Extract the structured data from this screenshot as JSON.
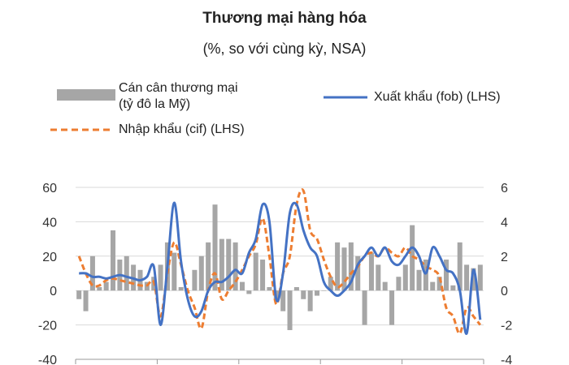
{
  "chart_data": {
    "type": "bar+line",
    "title": "Thương mại hàng hóa",
    "subtitle": "(%, so với cùng kỳ, NSA)",
    "legend": [
      {
        "key": "balance",
        "label_line1": "Cán cân thương mại",
        "label_line2": "(tỷ đô la Mỹ)",
        "style": "bar",
        "color": "#a6a6a6"
      },
      {
        "key": "exports",
        "label": "Xuất khẩu (fob) (LHS)",
        "style": "solid-line",
        "color": "#4472c4"
      },
      {
        "key": "imports",
        "label": "Nhập khẩu (cif) (LHS)",
        "style": "dashed-line",
        "color": "#ed7d31"
      }
    ],
    "left_axis": {
      "ticks": [
        "60",
        "40",
        "20",
        "0",
        "-20",
        "-40"
      ],
      "min": -40,
      "max": 60
    },
    "right_axis": {
      "ticks": [
        "6",
        "4",
        "2",
        "0",
        "-2",
        "-4"
      ],
      "min": -4,
      "max": 6
    },
    "x_categories_count": 60,
    "series": [
      {
        "key": "balance",
        "axis": "right",
        "values": [
          -0.5,
          -1.2,
          2.0,
          0.2,
          0.5,
          3.5,
          1.8,
          2.0,
          1.5,
          1.2,
          0.5,
          0.8,
          1.5,
          2.8,
          2.2,
          0.2,
          0.0,
          1.2,
          2.0,
          2.8,
          5.0,
          3.0,
          3.0,
          2.8,
          0.5,
          -0.2,
          2.2,
          1.8,
          0.2,
          -0.5,
          -1.2,
          -2.3,
          0.2,
          -0.5,
          -1.2,
          -0.3,
          0.0,
          0.8,
          2.8,
          2.5,
          2.8,
          2.0,
          -2.0,
          2.2,
          1.5,
          0.5,
          -2.0,
          0.8,
          1.5,
          3.8,
          1.2,
          1.8,
          0.5,
          0.8,
          1.8,
          0.3,
          2.8,
          1.5,
          1.3,
          1.5
        ]
      },
      {
        "key": "exports",
        "axis": "left",
        "values": [
          10,
          10,
          8,
          8,
          7,
          8,
          9,
          8,
          7,
          6,
          8,
          14,
          -20,
          14,
          51,
          17,
          -5,
          -15,
          -12,
          0,
          5,
          5,
          8,
          12,
          10,
          22,
          30,
          50,
          40,
          -5,
          10,
          45,
          50,
          35,
          25,
          20,
          5,
          0,
          -3,
          0,
          5,
          15,
          20,
          25,
          20,
          25,
          17,
          15,
          20,
          25,
          20,
          10,
          25,
          20,
          12,
          10,
          0,
          -25,
          12,
          -17
        ]
      },
      {
        "key": "imports",
        "axis": "left",
        "values": [
          20,
          10,
          3,
          3,
          6,
          7,
          6,
          5,
          4,
          3,
          3,
          5,
          -15,
          10,
          28,
          15,
          0,
          -10,
          -22,
          0,
          10,
          -5,
          0,
          5,
          12,
          20,
          27,
          42,
          20,
          -8,
          10,
          20,
          50,
          58,
          35,
          30,
          18,
          8,
          2,
          5,
          10,
          14,
          20,
          22,
          20,
          25,
          22,
          20,
          25,
          20,
          18,
          14,
          12,
          8,
          -10,
          -15,
          -25,
          -10,
          -15,
          -20
        ]
      }
    ]
  }
}
